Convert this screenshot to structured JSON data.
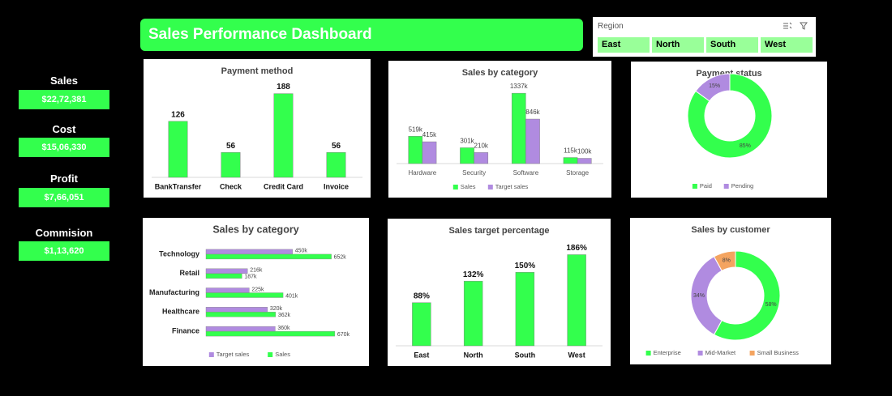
{
  "header": {
    "title": "Sales Performance Dashboard"
  },
  "slicer": {
    "title": "Region",
    "items": [
      "East",
      "North",
      "South",
      "West"
    ]
  },
  "kpis": [
    {
      "label": "Sales",
      "value": "$22,72,381"
    },
    {
      "label": "Cost",
      "value": "$15,06,330"
    },
    {
      "label": "Profit",
      "value": "$7,66,051"
    },
    {
      "label": "Commision",
      "value": "$1,13,620"
    }
  ],
  "chart_data": [
    {
      "type": "bar",
      "title": "Payment method",
      "categories": [
        "BankTransfer",
        "Check",
        "Credit Card",
        "Invoice"
      ],
      "values": [
        126,
        56,
        188,
        56
      ],
      "color": "#33ff4d",
      "ylim": [
        0,
        200
      ]
    },
    {
      "type": "bar",
      "title": "Sales by category",
      "categories": [
        "Hardware",
        "Security",
        "Software",
        "Storage"
      ],
      "series": [
        {
          "name": "Sales",
          "color": "#33ff4d",
          "values": [
            519000,
            301000,
            1337000,
            115000
          ],
          "value_labels": [
            "519k",
            "301k",
            "1337k",
            "115k"
          ]
        },
        {
          "name": "Target sales",
          "color": "#b08be0",
          "values": [
            415000,
            210000,
            846000,
            100000
          ],
          "value_labels": [
            "415k",
            "210k",
            "846k",
            "100k"
          ]
        }
      ],
      "ylim": [
        0,
        1400000
      ]
    },
    {
      "type": "donut",
      "title": "Payment status",
      "categories": [
        "Paid",
        "Pending"
      ],
      "values": [
        85,
        15
      ],
      "value_labels": [
        "85%",
        "15%"
      ],
      "colors": [
        "#33ff4d",
        "#b08be0"
      ]
    },
    {
      "type": "bar",
      "orientation": "horizontal",
      "title": "Sales by category",
      "categories": [
        "Technology",
        "Retail",
        "Manufacturing",
        "Healthcare",
        "Finance"
      ],
      "series": [
        {
          "name": "Target sales",
          "color": "#b08be0",
          "values": [
            450000,
            216000,
            225000,
            320000,
            360000
          ],
          "value_labels": [
            "450k",
            "216k",
            "225k",
            "320k",
            "360k"
          ]
        },
        {
          "name": "Sales",
          "color": "#33ff4d",
          "values": [
            652000,
            187000,
            401000,
            362000,
            670000
          ],
          "value_labels": [
            "652k",
            "187k",
            "401k",
            "362k",
            "670k"
          ]
        }
      ],
      "xlim": [
        0,
        700000
      ]
    },
    {
      "type": "bar",
      "title": "Sales target percentage",
      "categories": [
        "East",
        "North",
        "South",
        "West"
      ],
      "values": [
        88,
        132,
        150,
        186
      ],
      "value_labels": [
        "88%",
        "132%",
        "150%",
        "186%"
      ],
      "color": "#33ff4d",
      "ylim": [
        0,
        200
      ]
    },
    {
      "type": "donut",
      "title": "Sales by customer",
      "categories": [
        "Enterprise",
        "Mid-Market",
        "Small Business"
      ],
      "values": [
        58,
        34,
        8
      ],
      "value_labels": [
        "58%",
        "34%",
        "8%"
      ],
      "colors": [
        "#33ff4d",
        "#b08be0",
        "#f4a460"
      ]
    }
  ]
}
